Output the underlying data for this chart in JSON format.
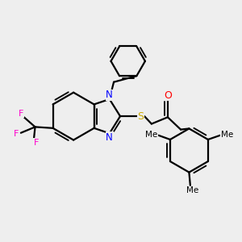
{
  "background_color": "#eeeeee",
  "line_color": "#000000",
  "N_color": "#0000ff",
  "O_color": "#ff0000",
  "S_color": "#ccaa00",
  "F_color": "#ff00cc",
  "line_width": 1.6,
  "figsize": [
    3.0,
    3.0
  ],
  "dpi": 100,
  "xlim": [
    0,
    10
  ],
  "ylim": [
    0,
    10
  ]
}
